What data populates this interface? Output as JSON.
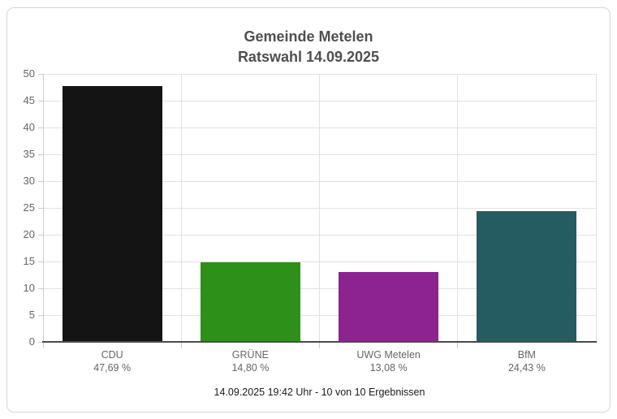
{
  "card": {
    "title_line1": "Gemeinde Metelen",
    "title_line2": "Ratswahl 14.09.2025",
    "footer": "14.09.2025 19:42 Uhr - 10 von 10 Ergebnissen"
  },
  "chart_data": {
    "type": "bar",
    "title": "Gemeinde Metelen Ratswahl 14.09.2025",
    "categories": [
      "CDU",
      "GRÜNE",
      "UWG Metelen",
      "BfM"
    ],
    "values": [
      47.69,
      14.8,
      13.08,
      24.43
    ],
    "value_labels": [
      "47,69 %",
      "14,80 %",
      "13,08 %",
      "24,43 %"
    ],
    "bar_colors": [
      "#141414",
      "#2d9119",
      "#8c2390",
      "#255c61"
    ],
    "ylim": [
      0,
      50
    ],
    "yticks": [
      0,
      5,
      10,
      15,
      20,
      25,
      30,
      35,
      40,
      45,
      50
    ],
    "grid": true,
    "legend": false,
    "xlabel": "",
    "ylabel": "",
    "annotation": "14.09.2025 19:42 Uhr - 10 von 10 Ergebnissen"
  },
  "colors": {
    "title_text": "#4f4f4f",
    "axis_label_text": "#666666",
    "footer_text": "#1a1a1a",
    "gridline": "#e2e2e2",
    "axis_tick": "#cccccc",
    "x_axis_line": "#4a4a4a",
    "card_border": "#d6d6d6",
    "background": "#ffffff"
  }
}
